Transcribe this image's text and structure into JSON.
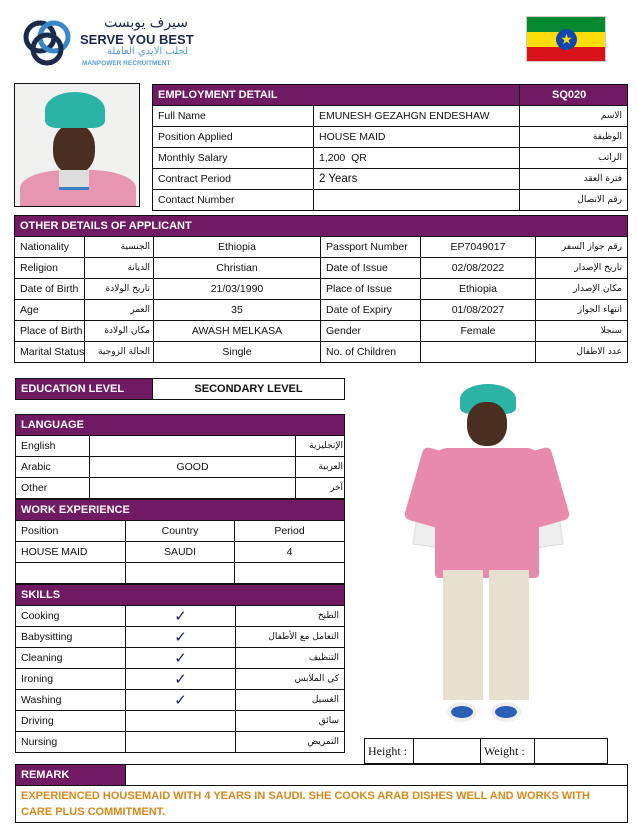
{
  "logo": {
    "arabic": "سيرف يوبست",
    "name": "SERVE YOU BEST",
    "arabic_sub": "لجلب الايدي العاملة",
    "sub": "MANPOWER RECRUITMENT"
  },
  "flag": {
    "country": "Ethiopia",
    "colors": [
      "#078930",
      "#fcdd09",
      "#da121a",
      "#0f47af"
    ]
  },
  "accent": "#711a64",
  "employment": {
    "title": "EMPLOYMENT DETAIL",
    "ref": "SQ020",
    "rows": [
      {
        "label": "Full Name",
        "value": "EMUNESH GEZAHGN ENDESHAW",
        "ar": "الاسم"
      },
      {
        "label": "Position Applied",
        "value": "HOUSE MAID",
        "ar": "الوظيفة"
      },
      {
        "label": "Monthly Salary",
        "value": "1,200  QR",
        "ar": "الراتب"
      },
      {
        "label": "Contract Period",
        "value": "2 Years",
        "ar": "فترة العقد"
      },
      {
        "label": "Contact Number",
        "value": "",
        "ar": "رقم الاتصال"
      }
    ]
  },
  "other": {
    "title": "OTHER DETAILS OF APPLICANT",
    "rows": [
      {
        "label": "Nationality",
        "ar": "الجنسية",
        "value": "Ethiopia",
        "label2": "Passport Number",
        "value2": "EP7049017",
        "ar2": "رقم جواز السفر"
      },
      {
        "label": "Religion",
        "ar": "الديانة",
        "value": "Christian",
        "label2": "Date of Issue",
        "value2": "02/08/2022",
        "ar2": "تاريخ الإصدار"
      },
      {
        "label": "Date of Birth",
        "ar": "تاريخ الولادة",
        "value": "21/03/1990",
        "label2": "Place of Issue",
        "value2": "Ethiopia",
        "ar2": "مكان الإصدار"
      },
      {
        "label": "Age",
        "ar": "العمر",
        "value": "35",
        "label2": "Date of Expiry",
        "value2": "01/08/2027",
        "ar2": "انتهاء الجواز"
      },
      {
        "label": "Place of Birth",
        "ar": "مكان الولادة",
        "value": "AWASH MELKASA",
        "label2": "Gender",
        "value2": "Female",
        "ar2": "سنجلا"
      },
      {
        "label": "Marital Status",
        "ar": "الحالة الزوجية",
        "value": "Single",
        "label2": "No. of Children",
        "value2": "",
        "ar2": "عدد الاطفال"
      }
    ]
  },
  "education": {
    "label": "EDUCATION LEVEL",
    "value": "SECONDARY LEVEL"
  },
  "language": {
    "title": "LANGUAGE",
    "rows": [
      {
        "label": "English",
        "value": "",
        "ar": "الإنجليزية"
      },
      {
        "label": "Arabic",
        "value": "GOOD",
        "ar": "العربية"
      },
      {
        "label": "Other",
        "value": "",
        "ar": "آخر"
      }
    ]
  },
  "work": {
    "title": "WORK EXPERIENCE",
    "headers": [
      "Position",
      "Country",
      "Period"
    ],
    "rows": [
      [
        "HOUSE MAID",
        "SAUDI",
        "4"
      ],
      [
        "",
        "",
        ""
      ]
    ]
  },
  "skills": {
    "title": "SKILLS",
    "check": "✓",
    "rows": [
      {
        "label": "Cooking",
        "checked": true,
        "ar": "الطبخ"
      },
      {
        "label": "Babysitting",
        "checked": true,
        "ar": "التعامل مع الأطفال"
      },
      {
        "label": "Cleaning",
        "checked": true,
        "ar": "التنظيف"
      },
      {
        "label": "Ironing",
        "checked": true,
        "ar": "كي الملابس"
      },
      {
        "label": "Washing",
        "checked": true,
        "ar": "الغسيل"
      },
      {
        "label": "Driving",
        "checked": false,
        "ar": "سائق"
      },
      {
        "label": "Nursing",
        "checked": false,
        "ar": "التمريض"
      }
    ]
  },
  "measures": {
    "height_label": "Height :",
    "height": "",
    "weight_label": "Weight :",
    "weight": ""
  },
  "remark": {
    "title": "REMARK",
    "text": "EXPERIENCED HOUSEMAID WITH 4 YEARS IN SAUDI. SHE COOKS ARAB DISHES WELL  AND WORKS WITH CARE PLUS COMMITMENT.",
    "color": "#d68a1c"
  }
}
